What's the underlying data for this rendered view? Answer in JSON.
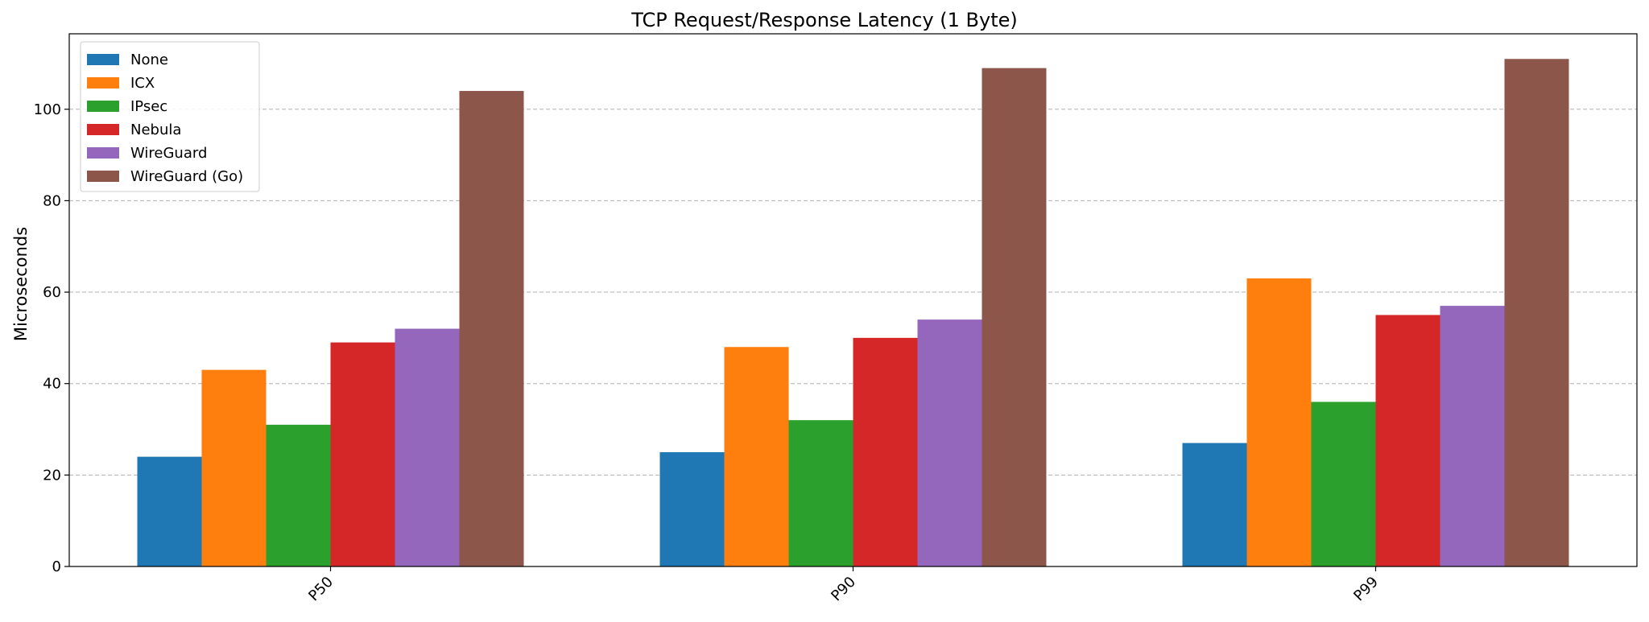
{
  "chart_data": {
    "type": "bar",
    "title": "TCP Request/Response Latency (1 Byte)",
    "xlabel": "",
    "ylabel": "Microseconds",
    "categories": [
      "P50",
      "P90",
      "P99"
    ],
    "ylim": [
      0,
      116.5
    ],
    "yticks": [
      0,
      20,
      40,
      60,
      80,
      100
    ],
    "grid": "y-dashed",
    "legend_position": "top-left",
    "series": [
      {
        "name": "None",
        "color": "#1f77b4",
        "values": [
          24,
          25,
          27
        ]
      },
      {
        "name": "ICX",
        "color": "#ff7f0e",
        "values": [
          43,
          48,
          63
        ]
      },
      {
        "name": "IPsec",
        "color": "#2ca02c",
        "values": [
          31,
          32,
          36
        ]
      },
      {
        "name": "Nebula",
        "color": "#d62728",
        "values": [
          49,
          50,
          55
        ]
      },
      {
        "name": "WireGuard",
        "color": "#9467bd",
        "values": [
          52,
          54,
          57
        ]
      },
      {
        "name": "WireGuard (Go)",
        "color": "#8c564b",
        "values": [
          104,
          109,
          111
        ]
      }
    ]
  }
}
